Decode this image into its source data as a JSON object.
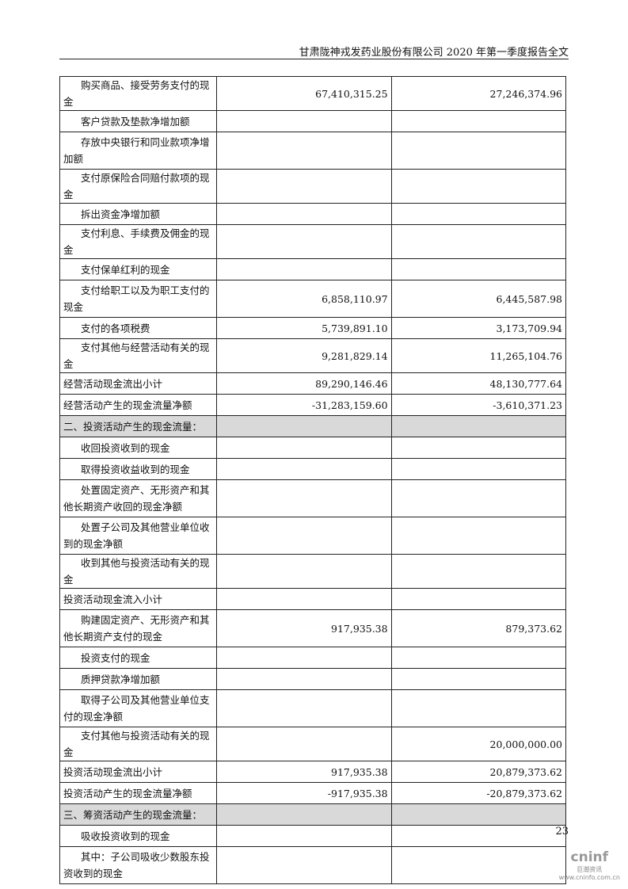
{
  "header": {
    "title": "甘肃陇神戎发药业股份有限公司 2020 年第一季度报告全文"
  },
  "rows": [
    {
      "label": "购买商品、接受劳务支付的现金",
      "cur": "67,410,315.25",
      "prev": "27,246,374.96",
      "indent": true,
      "lines": 1
    },
    {
      "label": "客户贷款及垫款净增加额",
      "cur": "",
      "prev": "",
      "indent": true,
      "lines": 1
    },
    {
      "label": "存放中央银行和同业款项净增加额",
      "cur": "",
      "prev": "",
      "indent": true,
      "lines": 2
    },
    {
      "label": "支付原保险合同赔付款项的现金",
      "cur": "",
      "prev": "",
      "indent": true,
      "lines": 1
    },
    {
      "label": "拆出资金净增加额",
      "cur": "",
      "prev": "",
      "indent": true,
      "lines": 1
    },
    {
      "label": "支付利息、手续费及佣金的现金",
      "cur": "",
      "prev": "",
      "indent": true,
      "lines": 1
    },
    {
      "label": "支付保单红利的现金",
      "cur": "",
      "prev": "",
      "indent": true,
      "lines": 1
    },
    {
      "label": "支付给职工以及为职工支付的现金",
      "cur": "6,858,110.97",
      "prev": "6,445,587.98",
      "indent": true,
      "lines": 2
    },
    {
      "label": "支付的各项税费",
      "cur": "5,739,891.10",
      "prev": "3,173,709.94",
      "indent": true,
      "lines": 1
    },
    {
      "label": "支付其他与经营活动有关的现金",
      "cur": "9,281,829.14",
      "prev": "11,265,104.76",
      "indent": true,
      "lines": 1
    },
    {
      "label": "经营活动现金流出小计",
      "cur": "89,290,146.46",
      "prev": "48,130,777.64",
      "indent": false,
      "lines": 1
    },
    {
      "label": "经营活动产生的现金流量净额",
      "cur": "-31,283,159.60",
      "prev": "-3,610,371.23",
      "indent": false,
      "lines": 1
    },
    {
      "label": "二、投资活动产生的现金流量：",
      "cur": "",
      "prev": "",
      "indent": false,
      "lines": 1,
      "shade": true
    },
    {
      "label": "收回投资收到的现金",
      "cur": "",
      "prev": "",
      "indent": true,
      "lines": 1
    },
    {
      "label": "取得投资收益收到的现金",
      "cur": "",
      "prev": "",
      "indent": true,
      "lines": 1
    },
    {
      "label": "处置固定资产、无形资产和其他长期资产收回的现金净额",
      "cur": "",
      "prev": "",
      "indent": true,
      "lines": 2
    },
    {
      "label": "处置子公司及其他营业单位收到的现金净额",
      "cur": "",
      "prev": "",
      "indent": true,
      "lines": 2
    },
    {
      "label": "收到其他与投资活动有关的现金",
      "cur": "",
      "prev": "",
      "indent": true,
      "lines": 1
    },
    {
      "label": "投资活动现金流入小计",
      "cur": "",
      "prev": "",
      "indent": false,
      "lines": 1
    },
    {
      "label": "购建固定资产、无形资产和其他长期资产支付的现金",
      "cur": "917,935.38",
      "prev": "879,373.62",
      "indent": true,
      "lines": 2
    },
    {
      "label": "投资支付的现金",
      "cur": "",
      "prev": "",
      "indent": true,
      "lines": 1
    },
    {
      "label": "质押贷款净增加额",
      "cur": "",
      "prev": "",
      "indent": true,
      "lines": 1
    },
    {
      "label": "取得子公司及其他营业单位支付的现金净额",
      "cur": "",
      "prev": "",
      "indent": true,
      "lines": 2
    },
    {
      "label": "支付其他与投资活动有关的现金",
      "cur": "",
      "prev": "20,000,000.00",
      "indent": true,
      "lines": 1
    },
    {
      "label": "投资活动现金流出小计",
      "cur": "917,935.38",
      "prev": "20,879,373.62",
      "indent": false,
      "lines": 1
    },
    {
      "label": "投资活动产生的现金流量净额",
      "cur": "-917,935.38",
      "prev": "-20,879,373.62",
      "indent": false,
      "lines": 1
    },
    {
      "label": "三、筹资活动产生的现金流量：",
      "cur": "",
      "prev": "",
      "indent": false,
      "lines": 1,
      "shade": true
    },
    {
      "label": "吸收投资收到的现金",
      "cur": "",
      "prev": "",
      "indent": true,
      "lines": 1
    },
    {
      "label": "其中：子公司吸收少数股东投资收到的现金",
      "cur": "",
      "prev": "",
      "indent": true,
      "lines": 2
    }
  ],
  "footer": {
    "page_number": "23",
    "logo_text": "cninf",
    "logo_cn": "巨潮资讯",
    "logo_url": "www.cninfo.com.cn"
  }
}
